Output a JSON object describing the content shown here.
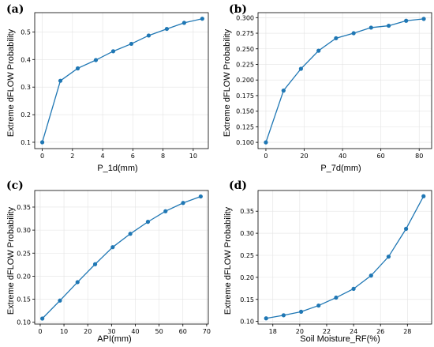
{
  "panels": [
    {
      "label": "(a)",
      "xlabel": "P_1d(mm)",
      "ylabel": "Extreme dFLOW Probability"
    },
    {
      "label": "(b)",
      "xlabel": "P_7d(mm)",
      "ylabel": "Extreme dFLOW Probability"
    },
    {
      "label": "(c)",
      "xlabel": "API(mm)",
      "ylabel": "Extreme dFLOW Probability"
    },
    {
      "label": "(d)",
      "xlabel": "Soil Moisture_RF(%)",
      "ylabel": "Extreme dFLOW Probability"
    }
  ],
  "colors": {
    "series": "#1f77b4"
  },
  "chart_data": [
    {
      "type": "line",
      "title": "",
      "xlabel": "P_1d(mm)",
      "ylabel": "Extreme dFLOW Probability",
      "x": [
        0,
        1.2,
        2.35,
        3.55,
        4.7,
        5.9,
        7.05,
        8.25,
        9.4,
        10.6
      ],
      "y": [
        0.1,
        0.323,
        0.368,
        0.398,
        0.43,
        0.457,
        0.487,
        0.511,
        0.533,
        0.548
      ],
      "xlim": [
        -0.5,
        11.0
      ],
      "ylim": [
        0.077,
        0.57
      ],
      "xticks": [
        0,
        2,
        4,
        6,
        8,
        10
      ],
      "yticks": [
        0.1,
        0.2,
        0.3,
        0.4,
        0.5
      ],
      "ytick_labels": [
        "0.1",
        "0.2",
        "0.3",
        "0.4",
        "0.5"
      ],
      "grid": true
    },
    {
      "type": "line",
      "title": "",
      "xlabel": "P_7d(mm)",
      "ylabel": "Extreme dFLOW Probability",
      "x": [
        0,
        9.2,
        18.3,
        27.5,
        36.6,
        45.8,
        54.9,
        64.1,
        73.2,
        82.4
      ],
      "y": [
        0.1,
        0.183,
        0.218,
        0.247,
        0.267,
        0.275,
        0.284,
        0.287,
        0.295,
        0.298
      ],
      "xlim": [
        -4.1,
        86.5
      ],
      "ylim": [
        0.09,
        0.308
      ],
      "xticks": [
        0,
        20,
        40,
        60,
        80
      ],
      "yticks": [
        0.1,
        0.125,
        0.15,
        0.175,
        0.2,
        0.225,
        0.25,
        0.275,
        0.3
      ],
      "ytick_labels": [
        "0.100",
        "0.125",
        "0.150",
        "0.175",
        "0.200",
        "0.225",
        "0.250",
        "0.275",
        "0.300"
      ],
      "grid": true
    },
    {
      "type": "line",
      "title": "",
      "xlabel": "API(mm)",
      "ylabel": "Extreme dFLOW Probability",
      "x": [
        0.9,
        8.3,
        15.7,
        23.1,
        30.5,
        37.9,
        45.3,
        52.7,
        60.1,
        67.5
      ],
      "y": [
        0.108,
        0.147,
        0.187,
        0.226,
        0.263,
        0.292,
        0.318,
        0.341,
        0.359,
        0.373
      ],
      "xlim": [
        -2.3,
        70.7
      ],
      "ylim": [
        0.096,
        0.386
      ],
      "xticks": [
        0,
        10,
        20,
        30,
        40,
        50,
        60,
        70
      ],
      "yticks": [
        0.1,
        0.15,
        0.2,
        0.25,
        0.3,
        0.35
      ],
      "ytick_labels": [
        "0.10",
        "0.15",
        "0.20",
        "0.25",
        "0.30",
        "0.35"
      ],
      "grid": true
    },
    {
      "type": "line",
      "title": "",
      "xlabel": "Soil Moisture_RF(%)",
      "ylabel": "Extreme dFLOW Probability",
      "x": [
        17.5,
        18.8,
        20.1,
        21.4,
        22.7,
        24.0,
        25.3,
        26.6,
        27.9,
        29.2
      ],
      "y": [
        0.107,
        0.114,
        0.122,
        0.136,
        0.154,
        0.174,
        0.204,
        0.247,
        0.31,
        0.384
      ],
      "xlim": [
        16.9,
        29.8
      ],
      "ylim": [
        0.094,
        0.397
      ],
      "xticks": [
        18,
        20,
        22,
        24,
        26,
        28
      ],
      "yticks": [
        0.1,
        0.15,
        0.2,
        0.25,
        0.3,
        0.35
      ],
      "ytick_labels": [
        "0.10",
        "0.15",
        "0.20",
        "0.25",
        "0.30",
        "0.35"
      ],
      "grid": true
    }
  ]
}
